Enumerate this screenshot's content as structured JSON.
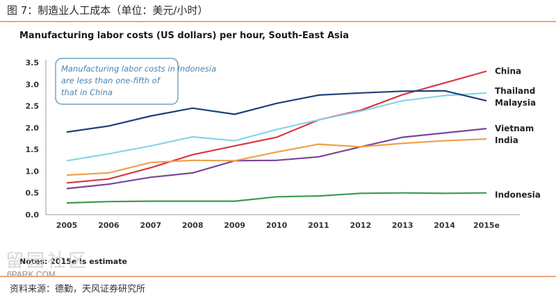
{
  "figure": {
    "title": "图 7：制造业人工成本（单位：美元/小时）",
    "source": "资料来源：德勤，天风证券研究所",
    "note": "Notes: 2015e is estimate",
    "watermark": "留园社区",
    "watermark_sub": "6PARK.COM"
  },
  "chart_data": {
    "type": "line",
    "title": "Manufacturing labor costs (US dollars) per hour, South-East Asia",
    "xlabel": "",
    "ylabel": "",
    "x": [
      "2005",
      "2006",
      "2007",
      "2008",
      "2009",
      "2010",
      "2011",
      "2012",
      "2013",
      "2014",
      "2015e"
    ],
    "ylim": [
      0,
      3.5
    ],
    "yticks": [
      "0.0",
      "0.5",
      "1.0",
      "1.5",
      "2.0",
      "2.5",
      "3.0",
      "3.5"
    ],
    "grid": false,
    "legend": "inline-right",
    "annotation": "Manufacturing labor costs in Indonesia are less than one-fifth of that in China",
    "series": [
      {
        "name": "China",
        "color": "#d9373f",
        "values": [
          0.73,
          0.82,
          1.08,
          1.38,
          1.58,
          1.78,
          2.18,
          2.4,
          2.76,
          3.03,
          3.3
        ]
      },
      {
        "name": "Thailand",
        "color": "#86d4ea",
        "values": [
          1.24,
          1.4,
          1.58,
          1.79,
          1.7,
          1.96,
          2.18,
          2.38,
          2.62,
          2.74,
          2.8
        ]
      },
      {
        "name": "Malaysia",
        "color": "#1f3f7a",
        "values": [
          1.9,
          2.04,
          2.27,
          2.45,
          2.31,
          2.56,
          2.75,
          2.8,
          2.84,
          2.85,
          2.62
        ]
      },
      {
        "name": "Vietnam",
        "color": "#7a449a",
        "values": [
          0.6,
          0.7,
          0.86,
          0.96,
          1.24,
          1.25,
          1.33,
          1.56,
          1.78,
          1.88,
          1.98
        ]
      },
      {
        "name": "India",
        "color": "#f0a04a",
        "values": [
          0.91,
          0.96,
          1.2,
          1.25,
          1.24,
          1.44,
          1.62,
          1.56,
          1.64,
          1.7,
          1.74
        ]
      },
      {
        "name": "Indonesia",
        "color": "#3f9a4f",
        "values": [
          0.27,
          0.3,
          0.31,
          0.31,
          0.31,
          0.41,
          0.43,
          0.49,
          0.5,
          0.49,
          0.5
        ]
      }
    ],
    "label_offsets": {
      "China": 0,
      "Thailand": 0,
      "Malaysia": 0,
      "Vietnam": 0,
      "India": 0,
      "Indonesia": 0
    }
  }
}
